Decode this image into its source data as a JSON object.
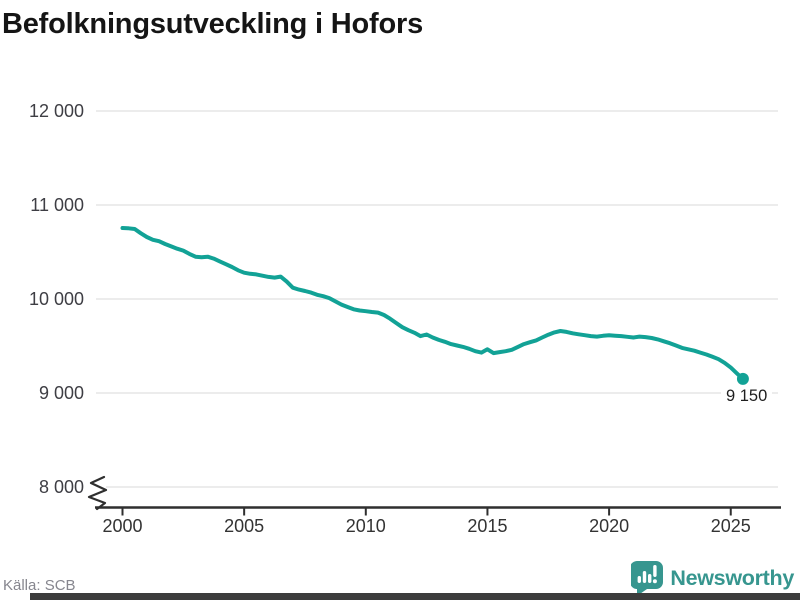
{
  "title": "Befolkningsutveckling i Hofors",
  "source": "Källa: SCB",
  "logo": {
    "text": "Newsworthy",
    "icon": "chart-speech-bubble"
  },
  "colors": {
    "line": "#12A296",
    "grid": "#E5E5E5",
    "axis": "#2F2F2F",
    "title": "#151515",
    "y_tick_label": "#3E3E44",
    "x_tick_label": "#333333",
    "annotation": "#1F1F1F",
    "source": "#86868E",
    "logo": "#37968F",
    "bottom_bar": "#3C3C3C"
  },
  "chart_data": {
    "type": "line",
    "title": "Befolkningsutveckling i Hofors",
    "xlabel": "",
    "ylabel": "",
    "ylim": [
      8000,
      12000
    ],
    "y_axis_break": true,
    "grid": "horizontal",
    "legend": "none",
    "end_label": "9 150",
    "end_value": 9150,
    "y_ticks": [
      {
        "label": "12 000",
        "value": 12000
      },
      {
        "label": "11 000",
        "value": 11000
      },
      {
        "label": "10 000",
        "value": 10000
      },
      {
        "label": "9 000",
        "value": 9000
      },
      {
        "label": "8 000",
        "value": 8000
      }
    ],
    "x_ticks": [
      {
        "label": "2000",
        "year": 2000
      },
      {
        "label": "2005",
        "year": 2005
      },
      {
        "label": "2010",
        "year": 2010
      },
      {
        "label": "2015",
        "year": 2015
      },
      {
        "label": "2020",
        "year": 2020
      },
      {
        "label": "2025",
        "year": 2025
      }
    ],
    "x": [
      2000,
      2000.25,
      2000.5,
      2000.75,
      2001,
      2001.25,
      2001.5,
      2001.75,
      2002,
      2002.25,
      2002.5,
      2002.75,
      2003,
      2003.25,
      2003.5,
      2003.75,
      2004,
      2004.25,
      2004.5,
      2004.75,
      2005,
      2005.25,
      2005.5,
      2005.75,
      2006,
      2006.25,
      2006.5,
      2006.75,
      2007,
      2007.25,
      2007.5,
      2007.75,
      2008,
      2008.25,
      2008.5,
      2008.75,
      2009,
      2009.25,
      2009.5,
      2009.75,
      2010,
      2010.25,
      2010.5,
      2010.75,
      2011,
      2011.25,
      2011.5,
      2011.75,
      2012,
      2012.25,
      2012.5,
      2012.75,
      2013,
      2013.25,
      2013.5,
      2013.75,
      2014,
      2014.25,
      2014.5,
      2014.75,
      2015,
      2015.25,
      2015.5,
      2015.75,
      2016,
      2016.25,
      2016.5,
      2016.75,
      2017,
      2017.25,
      2017.5,
      2017.75,
      2018,
      2018.25,
      2018.5,
      2018.75,
      2019,
      2019.25,
      2019.5,
      2019.75,
      2020,
      2020.25,
      2020.5,
      2020.75,
      2021,
      2021.25,
      2021.5,
      2021.75,
      2022,
      2022.25,
      2022.5,
      2022.75,
      2023,
      2023.25,
      2023.5,
      2023.75,
      2024,
      2024.25,
      2024.5,
      2024.75,
      2025,
      2025.25,
      2025.5
    ],
    "values": [
      10755,
      10752,
      10745,
      10700,
      10660,
      10630,
      10615,
      10585,
      10560,
      10535,
      10515,
      10480,
      10450,
      10445,
      10450,
      10430,
      10400,
      10370,
      10340,
      10305,
      10280,
      10268,
      10262,
      10248,
      10235,
      10228,
      10238,
      10185,
      10120,
      10100,
      10085,
      10068,
      10045,
      10030,
      10010,
      9975,
      9940,
      9915,
      9890,
      9878,
      9870,
      9862,
      9855,
      9830,
      9790,
      9745,
      9700,
      9668,
      9640,
      9605,
      9622,
      9590,
      9565,
      9545,
      9520,
      9505,
      9490,
      9470,
      9445,
      9430,
      9465,
      9425,
      9435,
      9445,
      9460,
      9490,
      9520,
      9540,
      9560,
      9590,
      9620,
      9645,
      9660,
      9650,
      9635,
      9625,
      9615,
      9605,
      9600,
      9608,
      9615,
      9610,
      9605,
      9598,
      9590,
      9600,
      9595,
      9585,
      9570,
      9550,
      9530,
      9505,
      9480,
      9465,
      9450,
      9430,
      9410,
      9385,
      9360,
      9320,
      9270,
      9210,
      9150
    ]
  }
}
